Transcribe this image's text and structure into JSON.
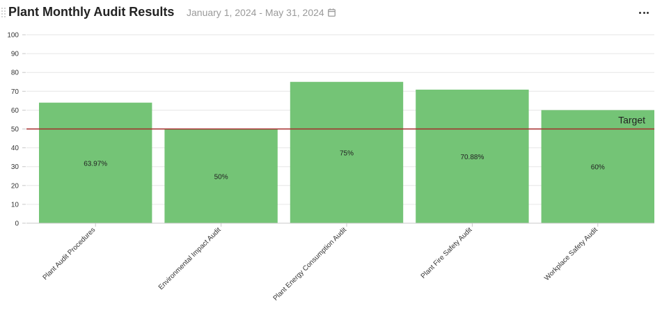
{
  "header": {
    "title": "Plant Monthly Audit Results",
    "date_range": "January 1, 2024 - May 31, 2024",
    "date_icon": "calendar-icon",
    "menu_icon": "more-horizontal-icon"
  },
  "chart_data": {
    "type": "bar",
    "title": "Plant Monthly Audit Results",
    "xlabel": "",
    "ylabel": "",
    "categories": [
      "Plant Audit Procedures",
      "Environmental Impact Audit",
      "Plant Energy Consumption Audit",
      "Plant Fire Safety Audit",
      "Workplace Safety Audit"
    ],
    "values": [
      63.97,
      50,
      75,
      70.88,
      60
    ],
    "value_labels": [
      "63.97%",
      "50%",
      "75%",
      "70.88%",
      "60%"
    ],
    "ylim": [
      0,
      100
    ],
    "yticks": [
      0,
      10,
      20,
      30,
      40,
      50,
      60,
      70,
      80,
      90,
      100
    ],
    "grid": true,
    "bar_color": "#74c476",
    "reference_line": {
      "label": "Target",
      "value": 50,
      "color": "#a52a2a"
    }
  }
}
